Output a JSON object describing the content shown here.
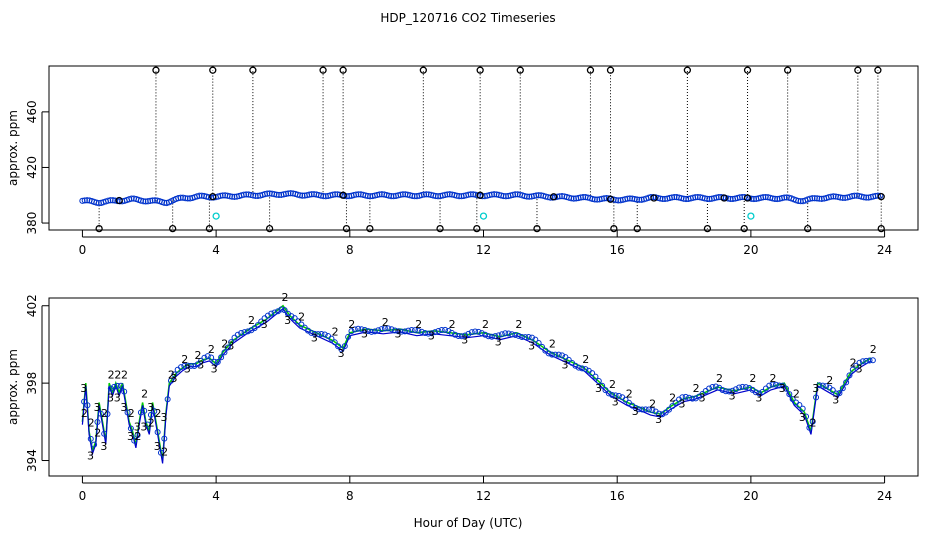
{
  "title": "HDP_120716  CO2 Timeseries",
  "colors": {
    "raw": "#000000",
    "series2": "#00cc00",
    "series3": "#0000cc",
    "circles": "#0033cc",
    "ref": "#00cccc"
  },
  "chart_data": [
    {
      "type": "scatter",
      "name": "top-panel",
      "xlabel": "",
      "ylabel": "approx. ppm",
      "xlim": [
        -1,
        25
      ],
      "ylim": [
        375,
        493
      ],
      "xticks": [
        "0",
        "4",
        "8",
        "12",
        "16",
        "20",
        "24"
      ],
      "yticks": [
        "380",
        "420",
        "460"
      ],
      "spikes_high": [
        2.2,
        3.9,
        5.1,
        7.2,
        7.8,
        10.2,
        11.9,
        13.1,
        15.2,
        15.8,
        18.1,
        19.9,
        21.1,
        23.2,
        23.8
      ],
      "spikes_low": [
        0.5,
        2.7,
        3.8,
        5.6,
        7.9,
        8.6,
        10.7,
        11.8,
        13.6,
        15.9,
        16.6,
        18.7,
        19.8,
        21.7,
        23.9
      ],
      "calibration_marks": [
        1.1,
        3.9,
        7.8,
        11.9,
        14.1,
        15.8,
        17.1,
        19.2,
        19.9,
        23.9
      ],
      "reference_points": [
        {
          "x": 4.0,
          "y": 385
        },
        {
          "x": 12.0,
          "y": 385
        },
        {
          "x": 20.0,
          "y": 385
        }
      ],
      "baseline": {
        "x": [
          0,
          0.5,
          1,
          1.5,
          2,
          2.5,
          3,
          3.5,
          4,
          5,
          6,
          7,
          8,
          10,
          12,
          13,
          14,
          15,
          15.9,
          16.5,
          17,
          18,
          19,
          20,
          21,
          21.6,
          22,
          23,
          23.7
        ],
        "y": [
          396,
          395,
          396,
          397,
          396,
          395,
          398,
          399,
          399,
          400,
          401,
          400,
          400,
          400,
          400,
          400,
          399,
          398,
          397,
          397,
          398,
          398,
          398,
          398,
          398,
          396,
          398,
          399,
          399
        ]
      }
    },
    {
      "type": "line",
      "name": "bottom-panel",
      "xlabel": "Hour of Day (UTC)",
      "ylabel": "approx. ppm",
      "xlim": [
        -1,
        25
      ],
      "ylim": [
        393.2,
        402.4
      ],
      "xticks": [
        "0",
        "4",
        "8",
        "12",
        "16",
        "20",
        "24"
      ],
      "yticks": [
        "394",
        "398",
        "402"
      ],
      "series": [
        {
          "name": "2",
          "label": "2"
        },
        {
          "name": "3",
          "label": "3"
        }
      ],
      "x": [
        0.0,
        0.1,
        0.2,
        0.3,
        0.4,
        0.5,
        0.6,
        0.7,
        0.8,
        0.9,
        1.0,
        1.1,
        1.2,
        1.3,
        1.4,
        1.5,
        1.6,
        1.7,
        1.8,
        1.9,
        2.0,
        2.1,
        2.2,
        2.3,
        2.4,
        2.5,
        2.6,
        2.8,
        3.0,
        3.2,
        3.4,
        3.6,
        3.8,
        4.0,
        4.2,
        4.5,
        5.0,
        5.5,
        6.0,
        6.2,
        6.5,
        7.0,
        7.5,
        7.8,
        8.0,
        8.5,
        9.0,
        9.5,
        10.0,
        10.5,
        11.0,
        11.5,
        12.0,
        12.5,
        13.0,
        13.5,
        14.0,
        14.5,
        15.0,
        15.5,
        15.8,
        16.0,
        16.3,
        16.6,
        17.0,
        17.3,
        17.6,
        18.0,
        18.3,
        18.6,
        19.0,
        19.5,
        20.0,
        20.3,
        20.6,
        21.0,
        21.3,
        21.6,
        21.8,
        22.0,
        22.3,
        22.6,
        23.0,
        23.3,
        23.6
      ],
      "y": [
        396.0,
        398.0,
        395.5,
        394.5,
        395.0,
        397.0,
        396.0,
        395.0,
        398.0,
        397.5,
        398.0,
        397.5,
        398.0,
        397.0,
        396.0,
        395.5,
        394.8,
        396.0,
        397.0,
        396.0,
        395.5,
        397.0,
        396.0,
        395.0,
        394.0,
        396.5,
        398.0,
        398.5,
        398.8,
        399.0,
        399.0,
        399.2,
        399.3,
        399.0,
        399.6,
        400.2,
        400.8,
        401.3,
        402.0,
        401.5,
        401.0,
        400.6,
        400.2,
        399.8,
        400.6,
        400.8,
        400.7,
        400.8,
        400.6,
        400.7,
        400.6,
        400.5,
        400.6,
        400.4,
        400.6,
        400.2,
        399.6,
        399.2,
        398.8,
        398.0,
        397.5,
        397.3,
        397.0,
        396.8,
        396.5,
        396.4,
        396.8,
        397.2,
        397.3,
        397.5,
        397.8,
        397.6,
        397.8,
        397.5,
        397.8,
        398.0,
        397.0,
        396.5,
        395.5,
        398.0,
        397.7,
        397.4,
        398.6,
        399.0,
        399.3
      ]
    }
  ]
}
